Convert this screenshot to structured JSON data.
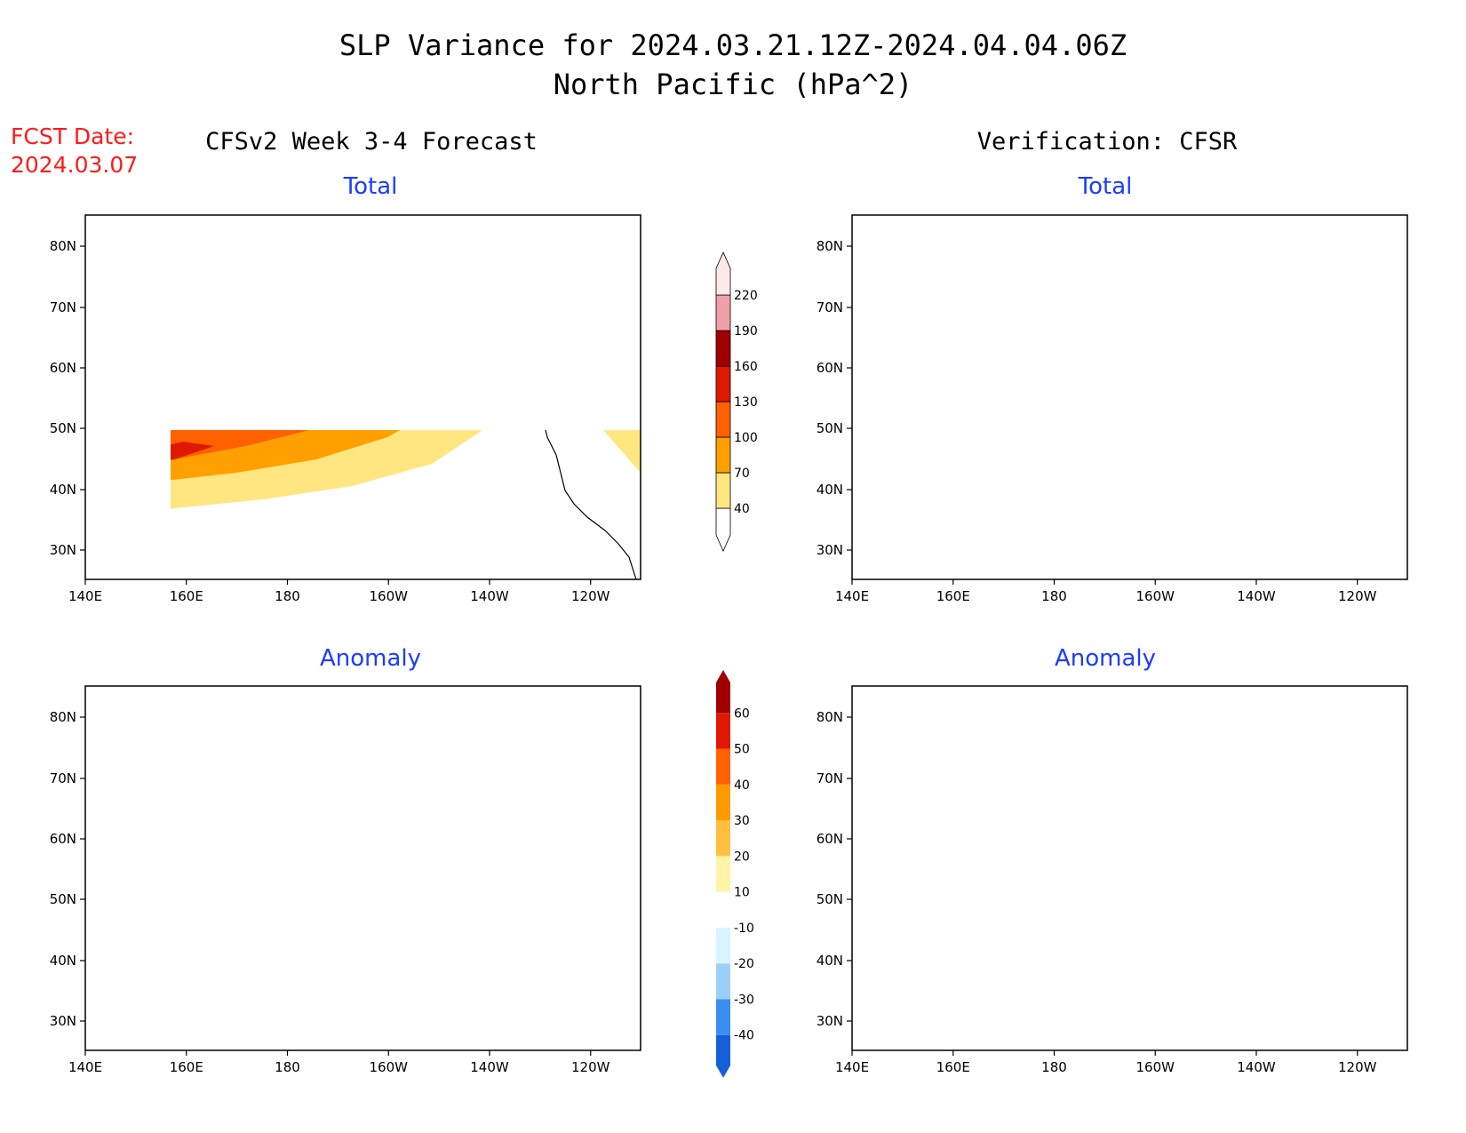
{
  "title_line1": "SLP Variance for 2024.03.21.12Z-2024.04.04.06Z",
  "title_line2": "North Pacific (hPa^2)",
  "fcst_label": "FCST Date:",
  "fcst_date": "2024.03.07",
  "left_header": "CFSv2 Week 3-4 Forecast",
  "right_header": "Verification: CFSR",
  "colors": {
    "title": "#000000",
    "fcst": "#ff1a1a",
    "panel_title": "#1c3cff",
    "total_scale": [
      "#ffffff",
      "#ffe680",
      "#ffa000",
      "#ff6000",
      "#e01800",
      "#a00000",
      "#f0a0a8",
      "#fde8ea"
    ],
    "anomaly_scale": [
      "#1560d8",
      "#3a8ef0",
      "#9ccff8",
      "#d8f4ff",
      "#ffffff",
      "#fff4a8",
      "#ffc040",
      "#ff9a00",
      "#ff6000",
      "#e01800",
      "#a00000"
    ]
  },
  "panels": [
    {
      "title": "Total",
      "source": "CFSv2 Week 3-4 Forecast"
    },
    {
      "title": "Total",
      "source": "Verification: CFSR"
    },
    {
      "title": "Anomaly",
      "source": "CFSv2 Week 3-4 Forecast"
    },
    {
      "title": "Anomaly",
      "source": "Verification: CFSR"
    }
  ],
  "axes": {
    "lon_ticks": [
      "140E",
      "160E",
      "180",
      "160W",
      "140W",
      "120W"
    ],
    "lat_ticks": [
      "80N",
      "70N",
      "60N",
      "50N",
      "40N",
      "30N"
    ],
    "lon_range": [
      "140E",
      "110W"
    ],
    "lat_range": [
      "25N",
      "85N"
    ]
  },
  "colorbar_total": {
    "labels": [
      "40",
      "70",
      "100",
      "130",
      "160",
      "190",
      "220"
    ]
  },
  "colorbar_anomaly": {
    "labels": [
      "-40",
      "-30",
      "-20",
      "-10",
      "10",
      "20",
      "30",
      "40",
      "50",
      "60"
    ]
  }
}
